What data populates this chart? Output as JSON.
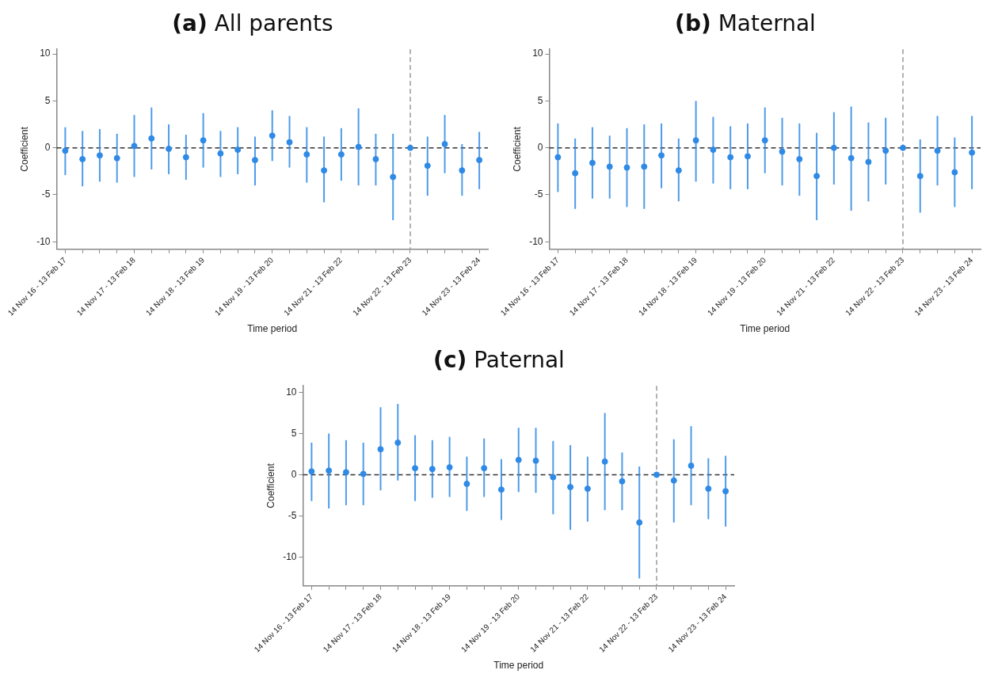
{
  "chart_data": [
    {
      "type": "scatter",
      "title": "(a) All parents",
      "xlabel": "Time period",
      "ylabel": "Coefficient",
      "categories": [
        "14 Nov 16 - 13 Feb 17",
        null,
        null,
        null,
        "14 Nov 17 - 13 Feb 18",
        null,
        null,
        null,
        "14 Nov 18 - 13 Feb 19",
        null,
        null,
        null,
        "14 Nov 19 - 13 Feb 20",
        null,
        null,
        null,
        "14 Nov 21 - 13 Feb 22",
        null,
        null,
        null,
        "14 Nov 22 - 13 Feb 23",
        null,
        null,
        null,
        "14 Nov 23 - 13 Feb 24"
      ],
      "series": [
        {
          "color": "#2f8ae6",
          "values": [
            -0.3,
            -1.2,
            -0.8,
            -1.1,
            0.2,
            1.0,
            -0.1,
            -1.0,
            0.8,
            -0.6,
            -0.2,
            -1.3,
            1.3,
            0.6,
            -0.7,
            -2.4,
            -0.7,
            0.1,
            -1.2,
            -3.1,
            0,
            -1.9,
            0.4,
            -2.4,
            -1.3
          ],
          "errors": [
            [
              -2.9,
              2.2
            ],
            [
              -4.1,
              1.8
            ],
            [
              -3.6,
              2.0
            ],
            [
              -3.7,
              1.5
            ],
            [
              -3.1,
              3.5
            ],
            [
              -2.3,
              4.3
            ],
            [
              -2.8,
              2.5
            ],
            [
              -3.4,
              1.4
            ],
            [
              -2.1,
              3.7
            ],
            [
              -3.1,
              1.8
            ],
            [
              -2.8,
              2.2
            ],
            [
              -4.0,
              1.2
            ],
            [
              -1.4,
              4.0
            ],
            [
              -2.1,
              3.4
            ],
            [
              -3.7,
              2.2
            ],
            [
              -5.8,
              1.2
            ],
            [
              -3.5,
              2.1
            ],
            [
              -4.0,
              4.2
            ],
            [
              -4.0,
              1.5
            ],
            [
              -7.7,
              1.5
            ],
            null,
            [
              -5.1,
              1.2
            ],
            [
              -2.7,
              3.5
            ],
            [
              -5.1,
              0.4
            ],
            [
              -4.4,
              1.7
            ]
          ]
        }
      ],
      "ylim": [
        -10.8,
        10.5
      ],
      "yticks": [
        -10,
        -5,
        0,
        5,
        10
      ],
      "marker": "circle",
      "ref_lines": [
        {
          "axis": "y",
          "value": 0,
          "color": "#333333",
          "line_style": "dashed"
        },
        {
          "axis": "x",
          "value": "14 Nov 22 - 13 Feb 23",
          "color": "#999999",
          "line_style": "dashed"
        }
      ]
    },
    {
      "type": "scatter",
      "title": "(b) Maternal",
      "xlabel": "Time period",
      "ylabel": "Coefficient",
      "categories": [
        "14 Nov 16 - 13 Feb 17",
        null,
        null,
        null,
        "14 Nov 17 - 13 Feb 18",
        null,
        null,
        null,
        "14 Nov 18 - 13 Feb 19",
        null,
        null,
        null,
        "14 Nov 19 - 13 Feb 20",
        null,
        null,
        null,
        "14 Nov 21 - 13 Feb 22",
        null,
        null,
        null,
        "14 Nov 22 - 13 Feb 23",
        null,
        null,
        null,
        "14 Nov 23 - 13 Feb 24"
      ],
      "series": [
        {
          "color": "#2f8ae6",
          "values": [
            -1.0,
            -2.7,
            -1.6,
            -2.0,
            -2.1,
            -2.0,
            -0.8,
            -2.4,
            0.8,
            -0.2,
            -1.0,
            -0.9,
            0.8,
            -0.4,
            -1.2,
            -3.0,
            0,
            -1.1,
            -1.5,
            -0.3,
            0,
            -3.0,
            -0.3,
            -2.6,
            -0.5
          ],
          "errors": [
            [
              -4.7,
              2.6
            ],
            [
              -6.5,
              1.0
            ],
            [
              -5.4,
              2.2
            ],
            [
              -5.4,
              1.3
            ],
            [
              -6.3,
              2.1
            ],
            [
              -6.5,
              2.5
            ],
            [
              -4.3,
              2.6
            ],
            [
              -5.7,
              1.0
            ],
            [
              -3.6,
              5.0
            ],
            [
              -3.8,
              3.3
            ],
            [
              -4.4,
              2.3
            ],
            [
              -4.4,
              2.6
            ],
            [
              -2.7,
              4.3
            ],
            [
              -4.0,
              3.2
            ],
            [
              -5.1,
              2.6
            ],
            [
              -7.7,
              1.6
            ],
            [
              -3.9,
              3.8
            ],
            [
              -6.7,
              4.4
            ],
            [
              -5.7,
              2.7
            ],
            [
              -3.9,
              3.2
            ],
            null,
            [
              -6.9,
              0.9
            ],
            [
              -4.0,
              3.4
            ],
            [
              -6.3,
              1.1
            ],
            [
              -4.4,
              3.4
            ]
          ]
        }
      ],
      "ylim": [
        -10.8,
        10.5
      ],
      "yticks": [
        -10,
        -5,
        0,
        5,
        10
      ],
      "marker": "circle",
      "ref_lines": [
        {
          "axis": "y",
          "value": 0,
          "color": "#333333",
          "line_style": "dashed"
        },
        {
          "axis": "x",
          "value": "14 Nov 22 - 13 Feb 23",
          "color": "#999999",
          "line_style": "dashed"
        }
      ]
    },
    {
      "type": "scatter",
      "title": "(c) Paternal",
      "xlabel": "Time period",
      "ylabel": "Coefficient",
      "categories": [
        "14 Nov 16 - 13 Feb 17",
        null,
        null,
        null,
        "14 Nov 17 - 13 Feb 18",
        null,
        null,
        null,
        "14 Nov 18 - 13 Feb 19",
        null,
        null,
        null,
        "14 Nov 19 - 13 Feb 20",
        null,
        null,
        null,
        "14 Nov 21 - 13 Feb 22",
        null,
        null,
        null,
        "14 Nov 22 - 13 Feb 23",
        null,
        null,
        null,
        "14 Nov 23 - 13 Feb 24"
      ],
      "series": [
        {
          "color": "#2f8ae6",
          "values": [
            0.4,
            0.5,
            0.3,
            0.1,
            3.1,
            3.9,
            0.8,
            0.7,
            0.9,
            -1.1,
            0.8,
            -1.8,
            1.8,
            1.7,
            -0.3,
            -1.5,
            -1.7,
            1.6,
            -0.8,
            -5.8,
            0,
            -0.7,
            1.1,
            -1.7,
            -2.0
          ],
          "errors": [
            [
              -3.2,
              3.9
            ],
            [
              -4.1,
              5.0
            ],
            [
              -3.7,
              4.2
            ],
            [
              -3.7,
              3.9
            ],
            [
              -1.9,
              8.2
            ],
            [
              -0.7,
              8.6
            ],
            [
              -3.2,
              4.8
            ],
            [
              -2.8,
              4.2
            ],
            [
              -2.7,
              4.6
            ],
            [
              -4.4,
              2.2
            ],
            [
              -2.7,
              4.4
            ],
            [
              -5.5,
              1.9
            ],
            [
              -2.1,
              5.7
            ],
            [
              -2.2,
              5.7
            ],
            [
              -4.8,
              4.1
            ],
            [
              -6.7,
              3.6
            ],
            [
              -5.7,
              2.2
            ],
            [
              -4.3,
              7.5
            ],
            [
              -4.3,
              2.7
            ],
            [
              -12.6,
              1.0
            ],
            null,
            [
              -5.8,
              4.3
            ],
            [
              -3.7,
              5.9
            ],
            [
              -5.4,
              2.0
            ],
            [
              -6.3,
              2.3
            ]
          ]
        }
      ],
      "ylim": [
        -13.5,
        10.8
      ],
      "yticks": [
        -10,
        -5,
        0,
        5,
        10
      ],
      "marker": "circle",
      "ref_lines": [
        {
          "axis": "y",
          "value": 0,
          "color": "#333333",
          "line_style": "dashed"
        },
        {
          "axis": "x",
          "value": "14 Nov 22 - 13 Feb 23",
          "color": "#999999",
          "line_style": "dashed"
        }
      ]
    }
  ]
}
